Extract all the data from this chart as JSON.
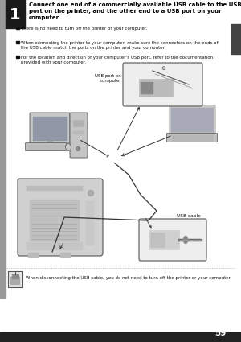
{
  "page_number": "59",
  "background_color": "#ffffff",
  "step_number": "1",
  "step_bg_color": "#1a1a1a",
  "step_text_color": "#ffffff",
  "header_text": "Connect one end of a commercially available USB cable to the USB\nport on the printer, and the other end to a USB port on your\ncomputer.",
  "bullets": [
    "There is no need to turn off the printer or your computer.",
    "When connecting the printer to your computer, make sure the connectors on the ends of\nthe USB cable match the ports on the printer and your computer.",
    "For the location and direction of your computer’s USB port, refer to the documentation\nprovided with your computer."
  ],
  "label_usb_port": "USB port on\ncomputer",
  "label_usb_cable": "USB cable",
  "footer_text": "When disconnecting the USB cable, you do not need to turn off the printer or your computer.",
  "left_bar_color": "#999999",
  "right_tab_color": "#444444",
  "dotted_line_color": "#aaaaaa",
  "page_num_bar_color": "#222222"
}
